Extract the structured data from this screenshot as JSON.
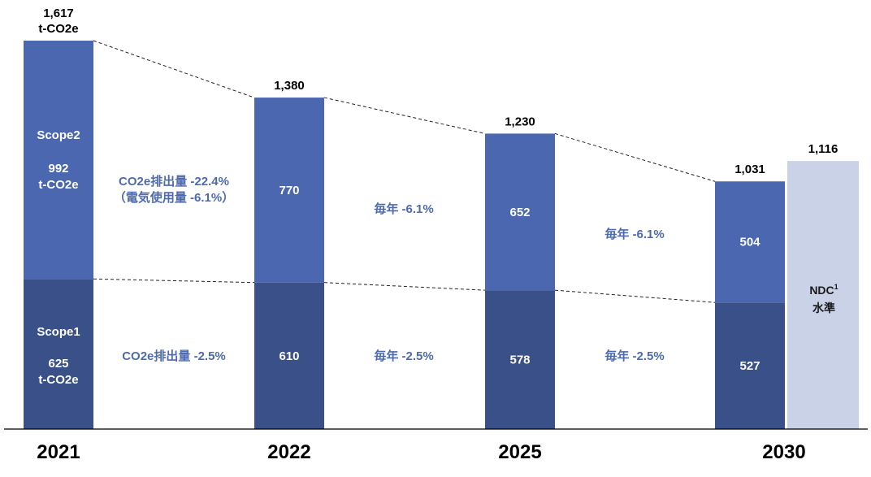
{
  "chart_data": {
    "type": "bar",
    "stacked": true,
    "categories": [
      "2021",
      "2022",
      "2025",
      "2030"
    ],
    "series": [
      {
        "name": "Scope1",
        "values": [
          625,
          610,
          578,
          527
        ]
      },
      {
        "name": "Scope2",
        "values": [
          992,
          770,
          652,
          504
        ]
      }
    ],
    "totals": [
      "1,617",
      "1,380",
      "1,230",
      "1,031"
    ],
    "first_total_unit": "t-CO2e",
    "segment_labels": {
      "scope1": [
        "625",
        "610",
        "578",
        "527"
      ],
      "scope2": [
        "992",
        "770",
        "652",
        "504"
      ]
    },
    "first_bar_labels": {
      "scope2_name": "Scope2",
      "scope2_value": "992",
      "scope2_unit": "t-CO2e",
      "scope1_name": "Scope1",
      "scope1_value": "625",
      "scope1_unit": "t-CO2e"
    },
    "reference_bar": {
      "value": 1116,
      "total_label": "1,116",
      "label_line1": "NDC",
      "label_sup": "1",
      "label_line2": "水準"
    },
    "annotations": {
      "gap1_scope2_line1": "CO2e排出量 -22.4%",
      "gap1_scope2_line2": "（電気使用量 -6.1%）",
      "gap1_scope1": "CO2e排出量 -2.5%",
      "gap2_scope2": "毎年 -6.1%",
      "gap2_scope1": "毎年 -2.5%",
      "gap3_scope2": "毎年 -6.1%",
      "gap3_scope1": "毎年 -2.5%"
    },
    "colors": {
      "scope1": "#3a5088",
      "scope2": "#4a67b0",
      "reference": "#c9d2e6",
      "annotation": "#4e6aae"
    },
    "ylim": [
      0,
      1700
    ],
    "grid": false,
    "legend": "none"
  }
}
